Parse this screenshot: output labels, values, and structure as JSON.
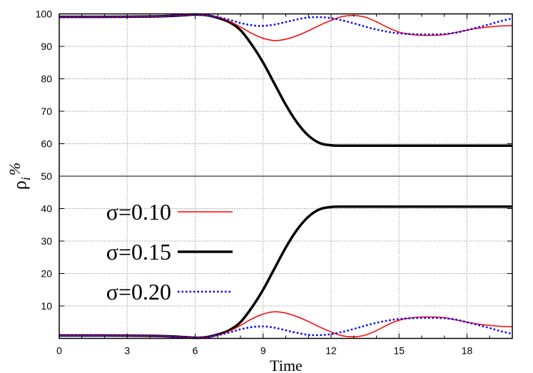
{
  "chart_data": {
    "type": "line",
    "title": "",
    "xlabel": "Time",
    "ylabel": "ρ_i %",
    "ylabel_main": "ρ",
    "ylabel_sub": "i",
    "ylabel_unit": "%",
    "xlim": [
      0,
      20
    ],
    "ylim": [
      0,
      100
    ],
    "xticks": [
      0,
      3,
      6,
      9,
      12,
      15,
      18
    ],
    "xtick_labels": [
      "0",
      "3",
      "6",
      "9",
      "12",
      "15",
      "18"
    ],
    "yticks": [
      10,
      20,
      30,
      40,
      50,
      60,
      70,
      80,
      90,
      100
    ],
    "ytick_labels": [
      "10",
      "20",
      "30",
      "40",
      "50",
      "60",
      "70",
      "80",
      "90",
      "100"
    ],
    "grid": true,
    "legend_position": "left-middle",
    "x": [
      0,
      2,
      4,
      5,
      5.5,
      6,
      6.5,
      7,
      7.5,
      8,
      8.5,
      9,
      9.5,
      10,
      10.5,
      11,
      11.5,
      12,
      12.5,
      13,
      13.5,
      14,
      14.5,
      15,
      15.5,
      16,
      16.5,
      17,
      17.5,
      18,
      18.5,
      19,
      19.5,
      20
    ],
    "series": [
      {
        "name": "σ=0.10",
        "color": "#ff0000",
        "style": "solid-thin",
        "upper": [
          99.1,
          99.1,
          99.2,
          99.4,
          99.6,
          99.8,
          99.6,
          99,
          97.8,
          96,
          94,
          92.5,
          91.8,
          92.2,
          93.3,
          94.8,
          96.5,
          98,
          99.2,
          99.5,
          99,
          97.6,
          95.8,
          94.4,
          93.7,
          93.4,
          93.4,
          93.6,
          94.3,
          95,
          95.6,
          96,
          96.3,
          96.4
        ],
        "lower": [
          0.9,
          0.9,
          0.8,
          0.6,
          0.4,
          0.2,
          0.4,
          1,
          2.2,
          4,
          6,
          7.5,
          8.2,
          7.8,
          6.7,
          5.2,
          3.5,
          2,
          0.8,
          0.5,
          1,
          2.4,
          4.2,
          5.6,
          6.3,
          6.6,
          6.6,
          6.4,
          5.7,
          5,
          4.4,
          4,
          3.7,
          3.6
        ]
      },
      {
        "name": "σ=0.15",
        "color": "#000000",
        "style": "solid-thick",
        "upper": [
          99.1,
          99.1,
          99.2,
          99.4,
          99.6,
          99.8,
          99.6,
          98.8,
          97.5,
          95,
          90.5,
          85,
          78.5,
          72,
          66.5,
          62.5,
          60.2,
          59.5,
          59.4,
          59.4,
          59.4,
          59.4,
          59.4,
          59.4,
          59.4,
          59.4,
          59.4,
          59.4,
          59.4,
          59.4,
          59.4,
          59.4,
          59.4,
          59.4
        ],
        "lower": [
          0.9,
          0.9,
          0.8,
          0.6,
          0.4,
          0.2,
          0.4,
          1.2,
          2.5,
          5,
          9.5,
          15,
          21.5,
          28,
          33.5,
          37.5,
          39.8,
          40.5,
          40.6,
          40.6,
          40.6,
          40.6,
          40.6,
          40.6,
          40.6,
          40.6,
          40.6,
          40.6,
          40.6,
          40.6,
          40.6,
          40.6,
          40.6,
          40.6
        ]
      },
      {
        "name": "σ=0.20",
        "color": "#0000ff",
        "style": "dotted",
        "upper": [
          99.1,
          99.1,
          99.2,
          99.4,
          99.6,
          99.8,
          99.6,
          99,
          98.2,
          97.2,
          96.5,
          96.3,
          96.7,
          97.5,
          98.3,
          98.9,
          99,
          98.7,
          98,
          97.1,
          96.1,
          95.2,
          94.5,
          94,
          93.8,
          93.7,
          93.7,
          93.8,
          94.2,
          95,
          95.9,
          96.8,
          97.8,
          98.6
        ],
        "lower": [
          0.9,
          0.9,
          0.8,
          0.6,
          0.4,
          0.2,
          0.4,
          1,
          1.8,
          2.8,
          3.5,
          3.7,
          3.3,
          2.5,
          1.7,
          1.1,
          1,
          1.3,
          2,
          2.9,
          3.9,
          4.8,
          5.5,
          6,
          6.2,
          6.3,
          6.3,
          6.2,
          5.8,
          5,
          4.1,
          3.2,
          2.2,
          1.4
        ]
      }
    ]
  }
}
